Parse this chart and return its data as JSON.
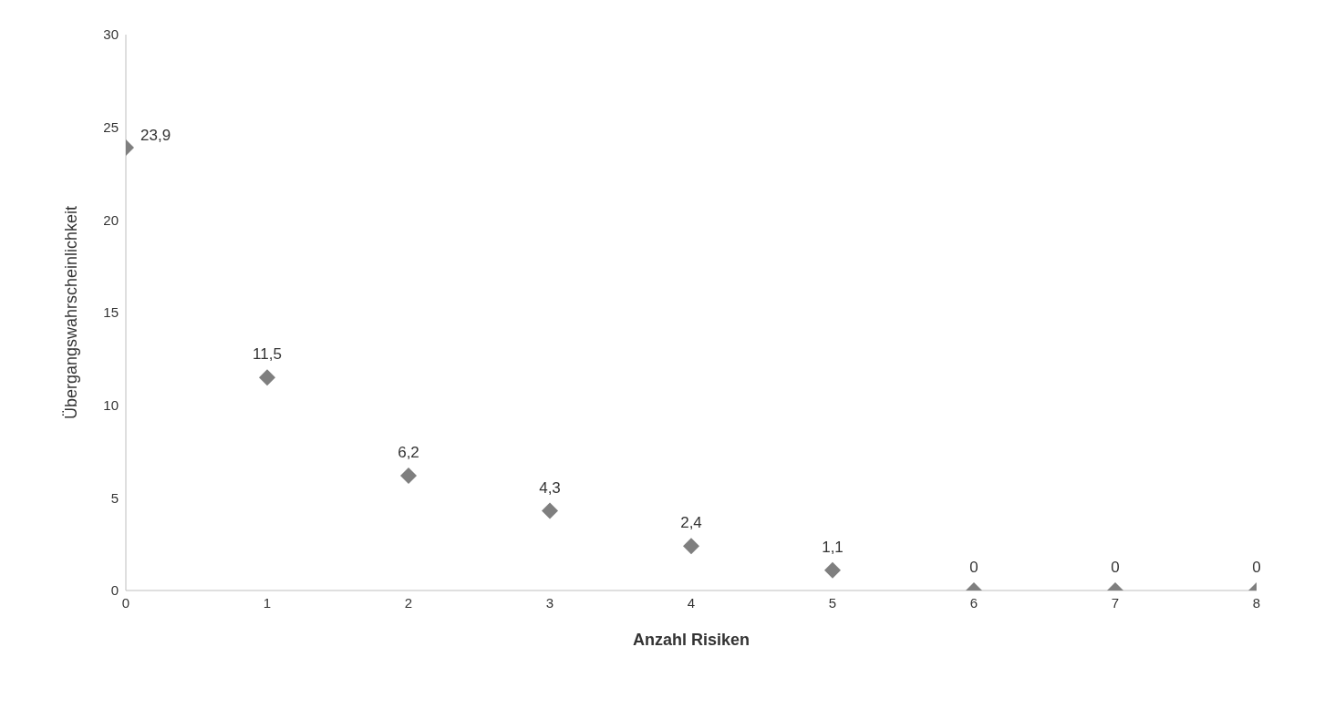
{
  "chart_data": {
    "type": "scatter",
    "xlabel": "Anzahl Risiken",
    "ylabel": "Übergangswahrscheinlichkeit",
    "x": [
      0,
      1,
      2,
      3,
      4,
      5,
      6,
      7,
      8
    ],
    "series": [
      {
        "color": "#7f7f7f",
        "values": [
          23.9,
          11.5,
          6.2,
          4.3,
          2.4,
          1.1,
          0,
          0,
          0
        ],
        "value_labels": [
          "23,9",
          "11,5",
          "6,2",
          "4,3",
          "2,4",
          "1,1",
          "0",
          "0",
          "0"
        ]
      }
    ],
    "xlim": [
      0,
      8
    ],
    "xticks": [
      0,
      1,
      2,
      3,
      4,
      5,
      6,
      7,
      8
    ],
    "ylim": [
      0,
      30
    ],
    "yticks": [
      0,
      5,
      10,
      15,
      20,
      25,
      30
    ],
    "grid": false,
    "marker": "diamond"
  }
}
